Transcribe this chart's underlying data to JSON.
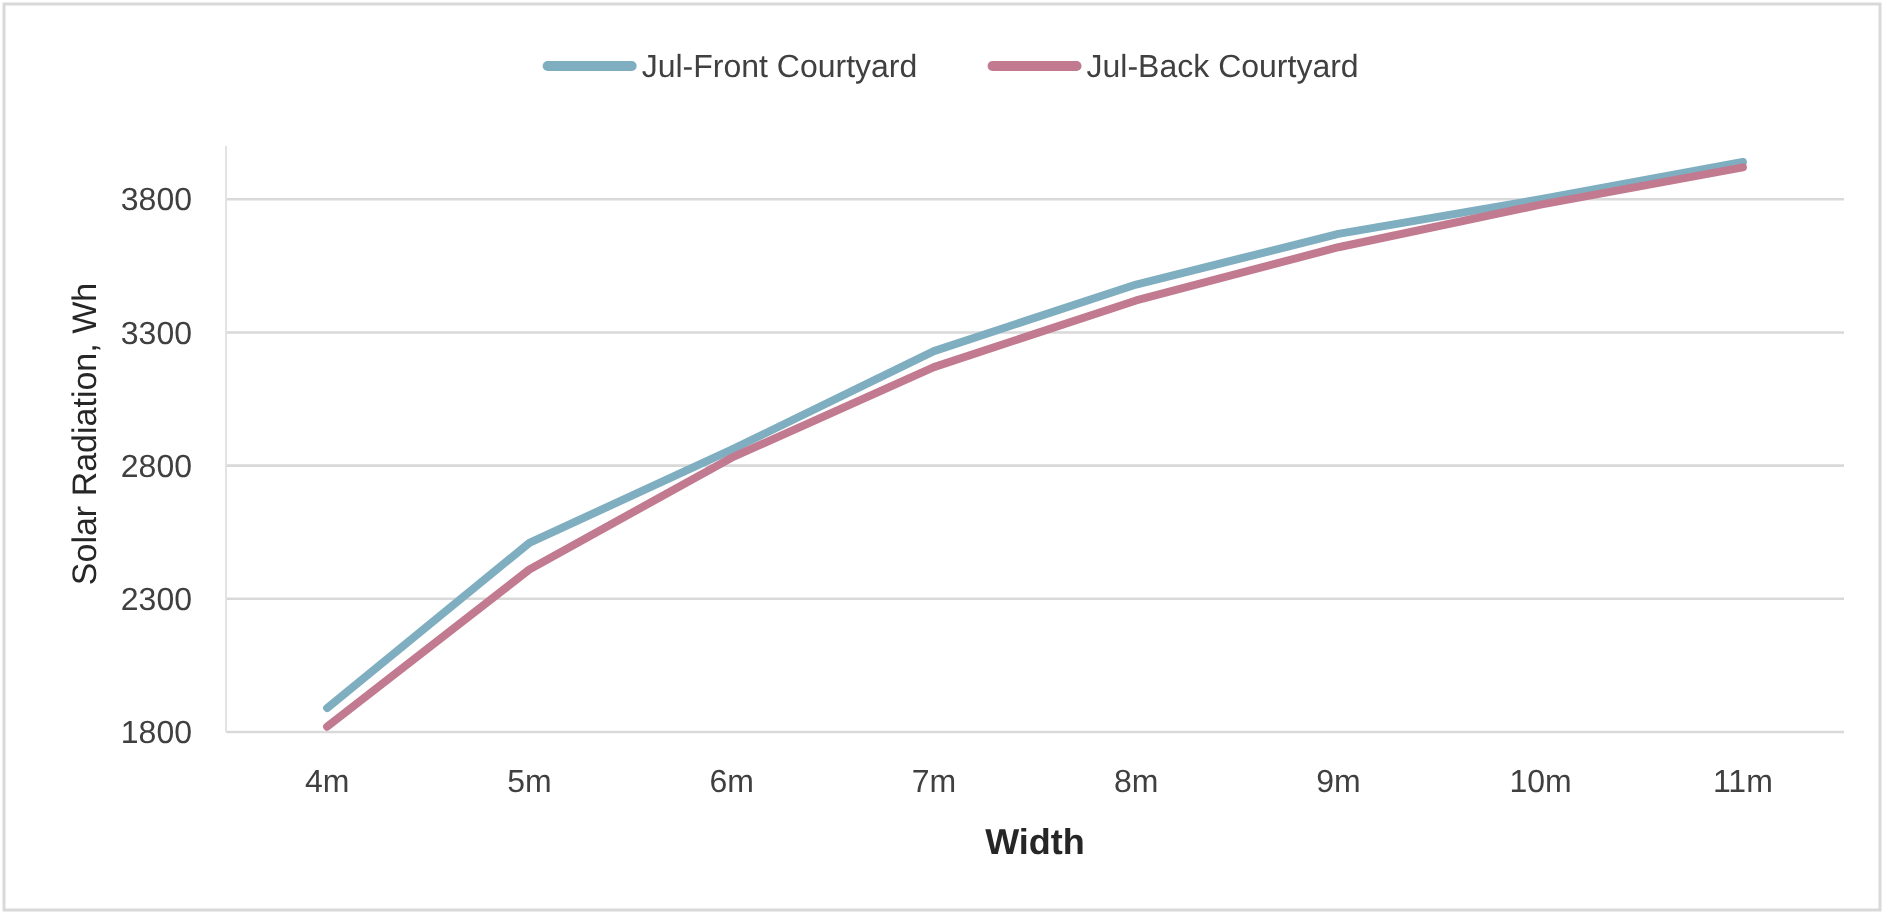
{
  "chart_data": {
    "type": "line",
    "xlabel": "Width",
    "ylabel": "Solar Radiation, Wh",
    "categories": [
      "4m",
      "5m",
      "6m",
      "7m",
      "8m",
      "9m",
      "10m",
      "11m"
    ],
    "series": [
      {
        "name": "Jul-Front Courtyard",
        "color": "#7eaebf",
        "values": [
          1890,
          2510,
          2860,
          3230,
          3480,
          3670,
          3800,
          3940
        ]
      },
      {
        "name": "Jul-Back Courtyard",
        "color": "#c27a90",
        "values": [
          1820,
          2410,
          2830,
          3170,
          3420,
          3620,
          3780,
          3920
        ]
      }
    ],
    "ylim": [
      1800,
      4000
    ],
    "yticks": [
      1800,
      2300,
      2800,
      3300,
      3800
    ],
    "grid": "y",
    "legend": "top",
    "marker": "none",
    "line_style": "solid"
  }
}
